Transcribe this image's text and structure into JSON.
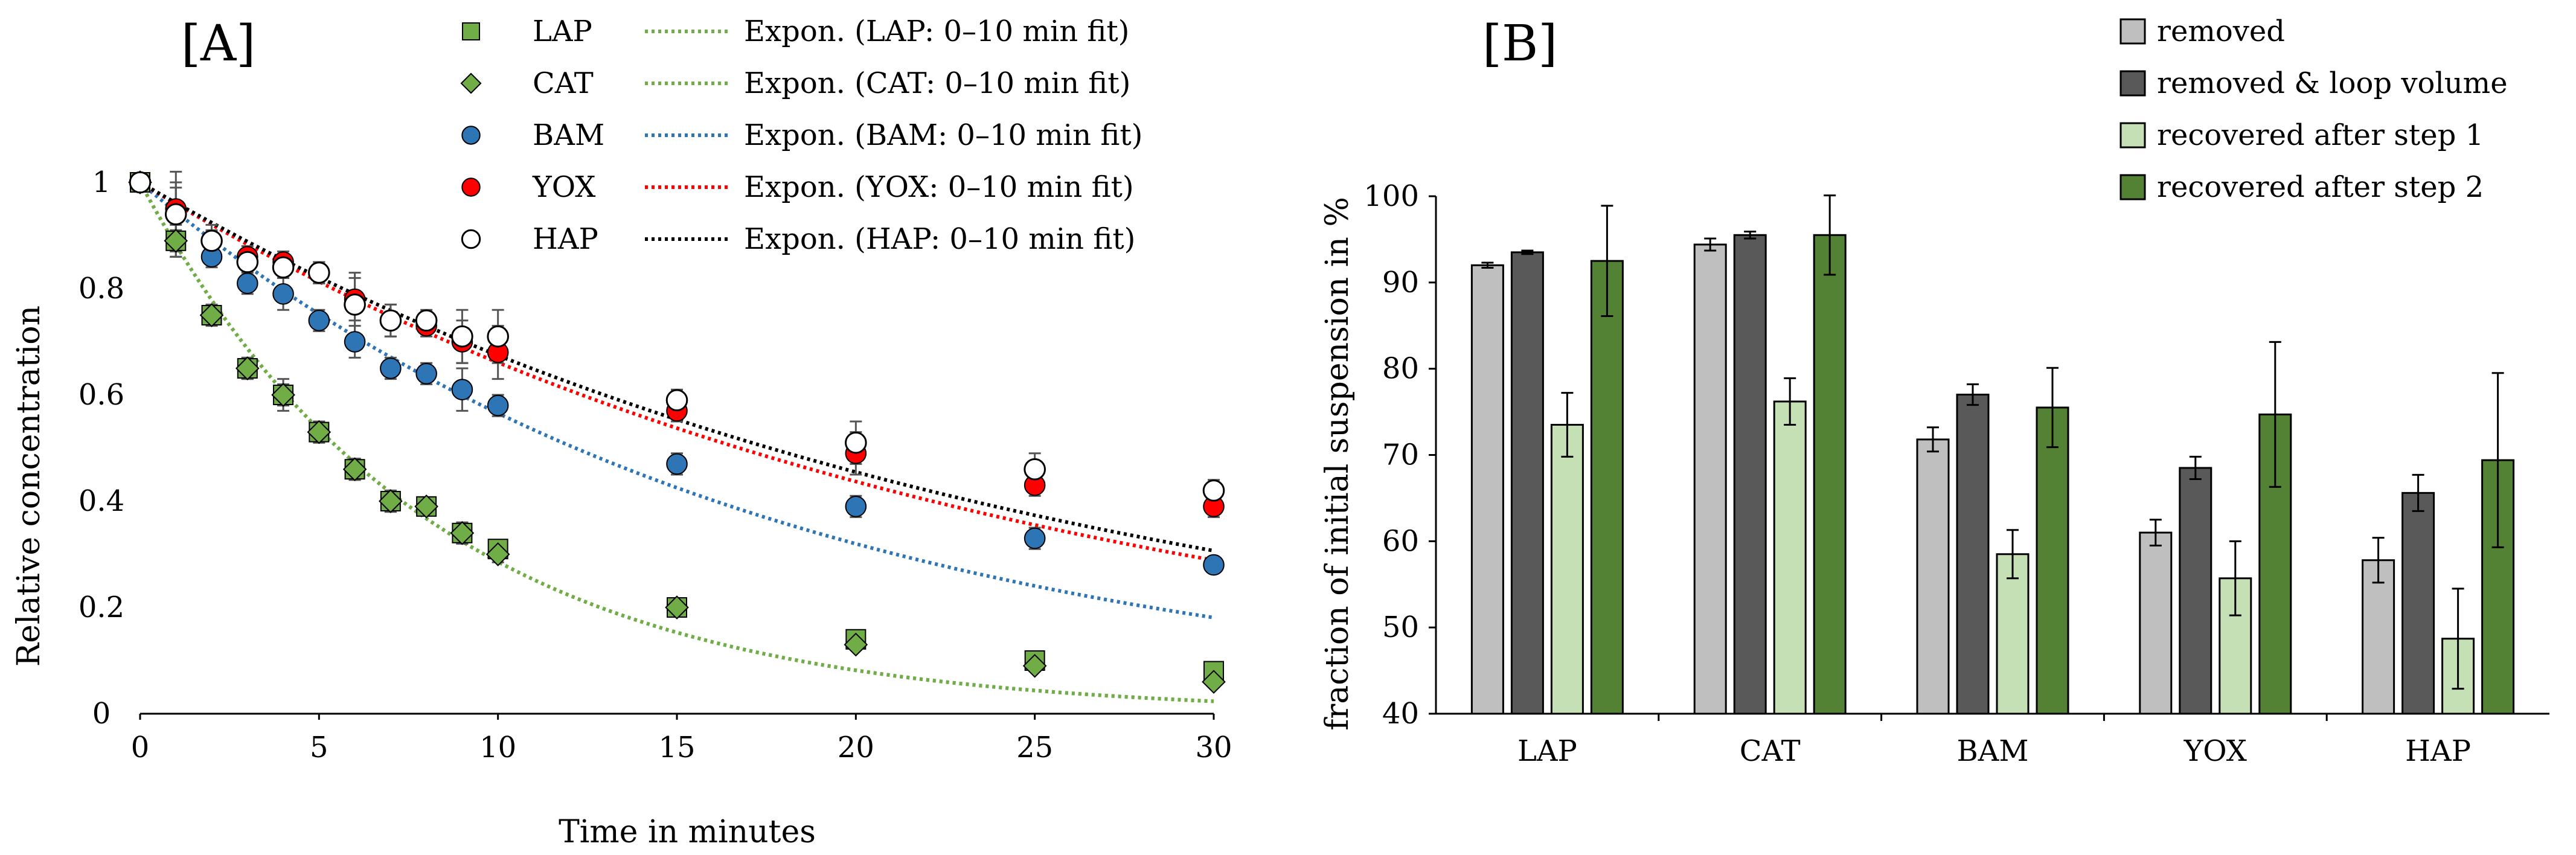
{
  "chart_data": [
    {
      "panel_label": "[A]",
      "type": "scatter",
      "xlabel": "Time in minutes",
      "ylabel": "Relative concentration",
      "xlim": [
        0,
        30
      ],
      "ylim": [
        0,
        1
      ],
      "xticks": [
        "0",
        "5",
        "10",
        "15",
        "20",
        "25",
        "30"
      ],
      "yticks": [
        "0",
        "0.2",
        "0.4",
        "0.6",
        "0.8",
        "1"
      ],
      "x": [
        0,
        1,
        2,
        3,
        4,
        5,
        6,
        7,
        8,
        9,
        10,
        15,
        20,
        25,
        30
      ],
      "series": [
        {
          "name": "LAP",
          "marker": "square",
          "color": "#70ad47",
          "values": [
            1,
            0.89,
            0.75,
            0.65,
            0.6,
            0.53,
            0.46,
            0.4,
            0.39,
            0.34,
            0.31,
            0.2,
            0.14,
            0.1,
            0.08
          ],
          "errors": [
            0,
            0.03,
            0.02,
            0.02,
            0.03,
            0.02,
            0.02,
            0.02,
            0.015,
            0.02,
            0.015,
            0.01,
            0.01,
            0.01,
            0.01
          ]
        },
        {
          "name": "CAT",
          "marker": "diamond",
          "color": "#70ad47",
          "values": [
            1,
            0.89,
            0.75,
            0.65,
            0.6,
            0.53,
            0.46,
            0.4,
            0.39,
            0.34,
            0.3,
            0.2,
            0.13,
            0.09,
            0.06
          ],
          "errors": [
            0,
            0.02,
            0.015,
            0.02,
            0.02,
            0.015,
            0.02,
            0.02,
            0.015,
            0.02,
            0.015,
            0.01,
            0.01,
            0.01,
            0.01
          ]
        },
        {
          "name": "BAM",
          "marker": "circle",
          "color": "#2e75b6",
          "values": [
            1,
            0.94,
            0.86,
            0.81,
            0.79,
            0.74,
            0.7,
            0.65,
            0.64,
            0.61,
            0.58,
            0.47,
            0.39,
            0.33,
            0.28
          ],
          "errors": [
            0,
            0.05,
            0.02,
            0.02,
            0.03,
            0.02,
            0.03,
            0.02,
            0.02,
            0.04,
            0.02,
            0.02,
            0.02,
            0.02,
            0.01
          ]
        },
        {
          "name": "YOX",
          "marker": "circle",
          "color": "#ff0000",
          "values": [
            1,
            0.95,
            0.89,
            0.86,
            0.85,
            0.83,
            0.78,
            0.74,
            0.73,
            0.7,
            0.68,
            0.57,
            0.49,
            0.43,
            0.39
          ],
          "errors": [
            0,
            0.05,
            0.02,
            0.02,
            0.02,
            0.02,
            0.04,
            0.03,
            0.02,
            0.04,
            0.05,
            0.02,
            0.04,
            0.02,
            0.02
          ]
        },
        {
          "name": "HAP",
          "marker": "circle-open",
          "color": "#000000",
          "values": [
            1,
            0.94,
            0.89,
            0.85,
            0.84,
            0.83,
            0.77,
            0.74,
            0.74,
            0.71,
            0.71,
            0.59,
            0.51,
            0.46,
            0.42
          ],
          "errors": [
            0,
            0.08,
            0.03,
            0.02,
            0.02,
            0.02,
            0.06,
            0.03,
            0.02,
            0.05,
            0.05,
            0.02,
            0.04,
            0.03,
            0.02
          ]
        }
      ],
      "fits": [
        {
          "name": "Expon. (LAP: 0–10 min fit)",
          "color": "#70ad47",
          "k": 0.1252
        },
        {
          "name": "Expon. (CAT: 0–10 min fit)",
          "color": "#70ad47",
          "k": 0.1252
        },
        {
          "name": "Expon. (BAM: 0–10 min fit)",
          "color": "#2e75b6",
          "k": 0.057
        },
        {
          "name": "Expon. (YOX: 0–10 min fit)",
          "color": "#ff0000",
          "k": 0.0414
        },
        {
          "name": "Expon. (HAP: 0–10 min fit)",
          "color": "#000000",
          "k": 0.0394
        }
      ]
    },
    {
      "panel_label": "[B]",
      "type": "bar",
      "ylabel": "fraction of initial suspension in %",
      "ylim": [
        40,
        100
      ],
      "yticks": [
        "40",
        "50",
        "60",
        "70",
        "80",
        "90",
        "100"
      ],
      "categories": [
        "LAP",
        "CAT",
        "BAM",
        "YOX",
        "HAP"
      ],
      "series": [
        {
          "name": "removed",
          "color": "#bfbfbf",
          "values": [
            92,
            94.4,
            71.8,
            61,
            57.8
          ],
          "errors": [
            0.3,
            0.7,
            1.4,
            1.5,
            2.6
          ]
        },
        {
          "name": "removed & loop volume",
          "color": "#595959",
          "values": [
            93.5,
            95.5,
            77,
            68.5,
            65.6
          ],
          "errors": [
            0.2,
            0.4,
            1.2,
            1.3,
            2.1
          ]
        },
        {
          "name": "recovered after step 1",
          "color": "#c5e0b4",
          "values": [
            73.5,
            76.2,
            58.5,
            55.7,
            48.7
          ],
          "errors": [
            3.7,
            2.7,
            2.8,
            4.3,
            5.8
          ]
        },
        {
          "name": "recovered after step 2",
          "color": "#548235",
          "values": [
            92.5,
            95.5,
            75.5,
            74.7,
            69.4
          ],
          "errors": [
            6.4,
            4.6,
            4.6,
            8.4,
            10.1
          ]
        }
      ]
    }
  ]
}
